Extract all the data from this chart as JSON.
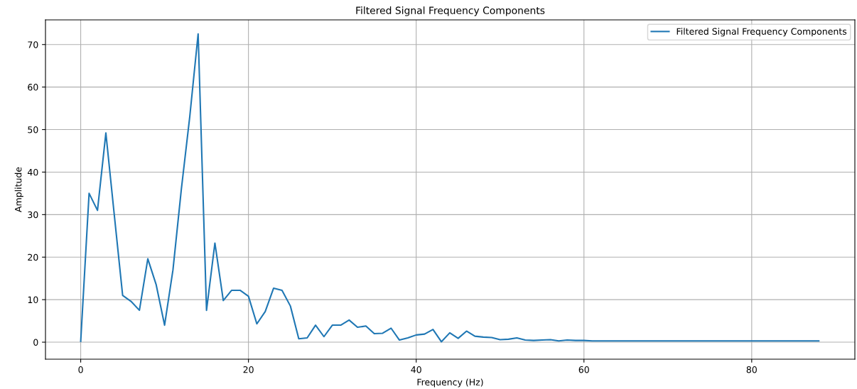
{
  "chart_data": {
    "type": "line",
    "title": "Filtered Signal Frequency Components",
    "xlabel": "Frequency (Hz)",
    "ylabel": "Amplitude",
    "x": [
      0,
      1,
      2,
      3,
      4,
      5,
      6,
      7,
      8,
      9,
      10,
      11,
      12,
      13,
      14,
      15,
      16,
      17,
      18,
      19,
      20,
      21,
      22,
      23,
      24,
      25,
      26,
      27,
      28,
      29,
      30,
      31,
      32,
      33,
      34,
      35,
      36,
      37,
      38,
      39,
      40,
      41,
      42,
      43,
      44,
      45,
      46,
      47,
      48,
      49,
      50,
      51,
      52,
      53,
      54,
      55,
      56,
      57,
      58,
      59,
      60,
      61,
      62,
      63,
      64,
      65,
      66,
      67,
      68,
      69,
      70,
      71,
      72,
      73,
      74,
      75,
      76,
      77,
      78,
      79,
      80,
      81,
      82,
      83,
      84,
      85,
      86,
      87,
      88
    ],
    "series": [
      {
        "name": "Filtered Signal Frequency Components",
        "color": "#1f77b4",
        "values": [
          0.2,
          35,
          31,
          49.2,
          30,
          11,
          9.6,
          7.5,
          19.6,
          13.5,
          4,
          17,
          36,
          53,
          72.5,
          7.5,
          23.3,
          9.8,
          12.2,
          12.2,
          10.8,
          4.3,
          7.2,
          12.7,
          12.2,
          8.5,
          0.8,
          1,
          4,
          1.3,
          4,
          4,
          5.2,
          3.5,
          3.8,
          2,
          2.1,
          3.3,
          0.5,
          1,
          1.7,
          1.9,
          3,
          0.1,
          2.2,
          0.9,
          2.6,
          1.4,
          1.2,
          1.1,
          0.6,
          0.7,
          1,
          0.5,
          0.4,
          0.5,
          0.6,
          0.3,
          0.5,
          0.4,
          0.4,
          0.3,
          0.3,
          0.3,
          0.3,
          0.3,
          0.3,
          0.3,
          0.3,
          0.3,
          0.3,
          0.3,
          0.3,
          0.3,
          0.3,
          0.3,
          0.3,
          0.3,
          0.3,
          0.3,
          0.3,
          0.3,
          0.3,
          0.3,
          0.3,
          0.3,
          0.3,
          0.3,
          0.3
        ]
      }
    ],
    "xlim": [
      -4.2,
      92.3
    ],
    "ylim": [
      -4,
      75.8
    ],
    "xticks": [
      0,
      20,
      40,
      60,
      80
    ],
    "yticks": [
      0,
      10,
      20,
      30,
      40,
      50,
      60,
      70
    ],
    "grid": true,
    "legend": "top right",
    "line_style": "solid",
    "marker": "none"
  }
}
